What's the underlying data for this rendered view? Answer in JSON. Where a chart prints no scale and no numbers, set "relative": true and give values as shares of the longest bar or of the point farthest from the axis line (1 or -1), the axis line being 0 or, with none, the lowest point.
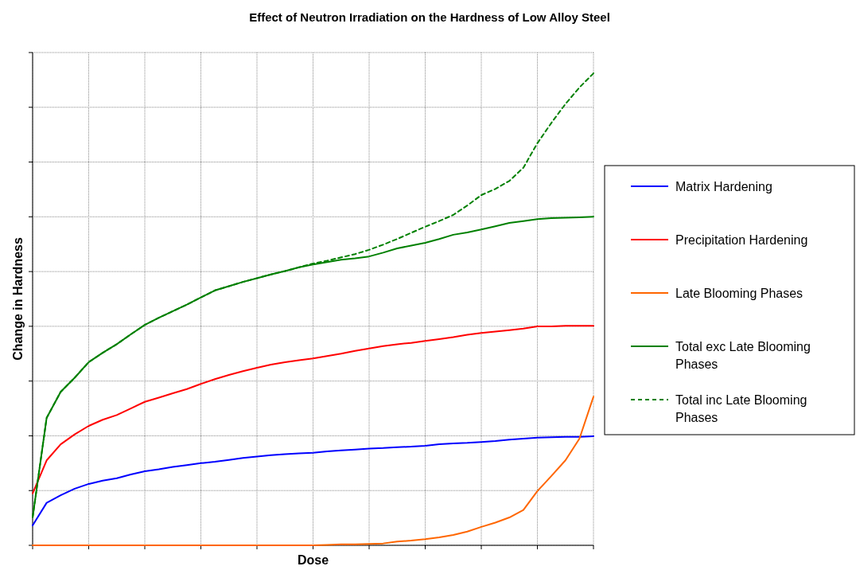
{
  "chart_data": {
    "type": "line",
    "title": "Effect of Neutron Irradiation on the Hardness of Low Alloy Steel",
    "xlabel": "Dose",
    "ylabel": "Change in Hardness",
    "relative": true,
    "grid": true,
    "legend": "right",
    "categories": [
      null,
      null,
      null,
      null,
      null,
      null,
      null,
      null,
      null,
      null,
      null,
      null,
      null,
      null,
      null,
      null,
      null,
      null,
      null,
      null,
      null,
      null,
      null,
      null,
      null,
      null,
      null,
      null,
      null,
      null,
      null,
      null,
      null,
      null,
      null,
      null,
      null,
      null,
      null,
      null,
      null
    ],
    "series": [
      {
        "name": "Matrix Hardening",
        "color": "#0000ff",
        "values": [
          0.042,
          0.09,
          0.106,
          0.12,
          0.13,
          0.137,
          0.142,
          0.15,
          0.157,
          0.161,
          0.166,
          0.17,
          0.174,
          0.177,
          0.181,
          0.185,
          0.188,
          0.191,
          0.193,
          0.195,
          0.196,
          0.199,
          0.201,
          0.203,
          0.205,
          0.206,
          0.208,
          0.209,
          0.211,
          0.214,
          0.216,
          0.217,
          0.219,
          0.221,
          0.224,
          0.226,
          0.228,
          0.229,
          0.23,
          0.23,
          0.231
        ]
      },
      {
        "name": "Precipitation Hardening",
        "color": "#ff0000",
        "values": [
          0.11,
          0.18,
          0.214,
          0.235,
          0.253,
          0.266,
          0.276,
          0.29,
          0.304,
          0.313,
          0.322,
          0.331,
          0.342,
          0.352,
          0.361,
          0.369,
          0.376,
          0.383,
          0.388,
          0.392,
          0.396,
          0.401,
          0.406,
          0.412,
          0.417,
          0.422,
          0.426,
          0.429,
          0.433,
          0.437,
          0.441,
          0.446,
          0.45,
          0.453,
          0.456,
          0.459,
          0.464,
          0.464,
          0.465,
          0.465,
          0.465
        ]
      },
      {
        "name": "Late Blooming Phases",
        "color": "#ff6600",
        "values": [
          0,
          0,
          0,
          0,
          0,
          0,
          0,
          0,
          0,
          0,
          0,
          0,
          0,
          0,
          0,
          0,
          0,
          0,
          0,
          0,
          0,
          0.001,
          0.002,
          0.002,
          0.003,
          0.004,
          0.008,
          0.01,
          0.013,
          0.017,
          0.022,
          0.029,
          0.039,
          0.048,
          0.059,
          0.075,
          0.115,
          0.147,
          0.18,
          0.226,
          0.315
        ]
      },
      {
        "name": "Total exc Late Blooming Phases",
        "color": "#008000",
        "values": [
          0.059,
          0.27,
          0.325,
          0.355,
          0.388,
          0.408,
          0.426,
          0.447,
          0.467,
          0.482,
          0.496,
          0.51,
          0.525,
          0.54,
          0.549,
          0.558,
          0.566,
          0.574,
          0.581,
          0.589,
          0.595,
          0.6,
          0.605,
          0.608,
          0.612,
          0.62,
          0.629,
          0.635,
          0.641,
          0.649,
          0.658,
          0.663,
          0.669,
          0.676,
          0.683,
          0.687,
          0.691,
          0.693,
          0.694,
          0.695,
          0.696
        ]
      },
      {
        "name": "Total inc Late Blooming Phases",
        "color": "#008000",
        "line_style": "dashed",
        "values": [
          0.059,
          0.27,
          0.325,
          0.355,
          0.388,
          0.408,
          0.426,
          0.447,
          0.467,
          0.482,
          0.496,
          0.51,
          0.525,
          0.54,
          0.549,
          0.558,
          0.566,
          0.574,
          0.581,
          0.589,
          0.597,
          0.603,
          0.61,
          0.617,
          0.626,
          0.637,
          0.649,
          0.662,
          0.675,
          0.687,
          0.7,
          0.72,
          0.742,
          0.755,
          0.772,
          0.8,
          0.852,
          0.895,
          0.935,
          0.97,
          1
        ]
      }
    ]
  }
}
